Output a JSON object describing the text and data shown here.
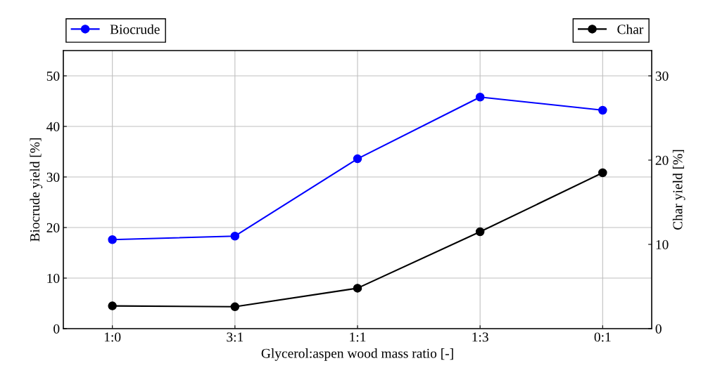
{
  "chart_data": {
    "type": "line",
    "xlabel": "Glycerol:aspen wood mass ratio [-]",
    "ylabel": "Biocrude yield [%]",
    "y2label": "Char yield [%]",
    "categories": [
      "1:0",
      "3:1",
      "1:1",
      "1:3",
      "0:1"
    ],
    "series": [
      {
        "name": "Biocrude",
        "color": "#0000ff",
        "values": [
          17.6,
          18.3,
          33.6,
          45.8,
          43.2
        ]
      },
      {
        "name": "Char",
        "color": "#000000",
        "axis": "y2",
        "values": [
          2.7,
          2.6,
          4.8,
          11.5,
          18.5
        ]
      }
    ],
    "ylim": [
      0,
      55
    ],
    "yticks": [
      0,
      10,
      20,
      30,
      40,
      50
    ],
    "y2lim": [
      0,
      33
    ],
    "y2ticks": [
      0,
      10,
      20,
      30
    ],
    "grid": true,
    "legend": "top",
    "marker": "circle",
    "line_style": "solid"
  }
}
